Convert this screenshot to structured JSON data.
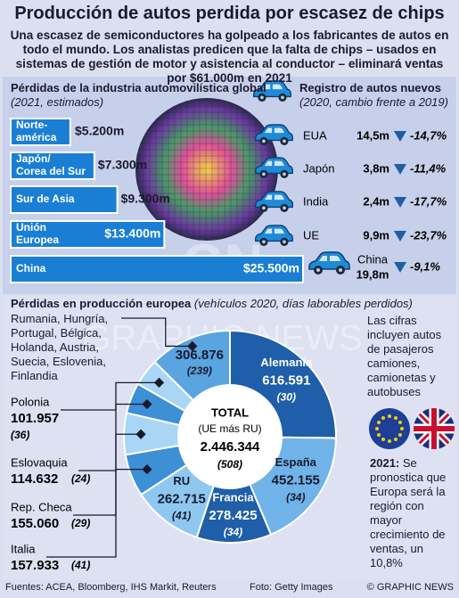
{
  "header": {
    "title": "Producción de autos perdida por escasez de chips",
    "subtitle": "Una escasez de semiconductores ha golpeado a los fabricantes de autos en todo el mundo. Los analistas predicen que la falta de chips – usados en sistemas de gestión de motor y asistencia al conductor – eliminará ventas por $61.000m en 2021"
  },
  "chart_data": [
    {
      "type": "bar",
      "orientation": "horizontal",
      "title": "Pérdidas de la industria automovilística global",
      "subtitle": "(2021, estimados)",
      "categories": [
        "Norte-\namérica",
        "Japón/\nCorea del Sur",
        "Sur de Asia",
        "Unión\nEuropea",
        "China"
      ],
      "values": [
        5200,
        7300,
        9300,
        13400,
        25500
      ],
      "value_labels": [
        "$5.200m",
        "$7.300m",
        "$9.300m",
        "$13.400m",
        "$25.500m"
      ],
      "color": "#1a7fd4"
    },
    {
      "type": "pie",
      "donut": true,
      "title": "Pérdidas en producción europea",
      "subtitle": "(vehículos 2020, días laborables perdidos)",
      "categories": [
        "Alemania",
        "España",
        "Francia",
        "RU",
        "Italia",
        "Rep. Checa",
        "Eslovaquia",
        "Polonia",
        "Rumania, Hungría, Portugal, Bélgica, Holanda, Austria, Suecia, Eslovenia, Finlandia"
      ],
      "values": [
        616591,
        452155,
        278425,
        262715,
        157933,
        155060,
        114632,
        101957,
        306876
      ],
      "value_labels": [
        "616.591",
        "452.155",
        "278.425",
        "262.715",
        "157.933",
        "155.060",
        "114.632",
        "101.957",
        "306.876"
      ],
      "days": [
        "(30)",
        "(34)",
        "(34)",
        "(41)",
        "(41)",
        "(29)",
        "(24)",
        "(36)",
        "(239)"
      ],
      "colors": [
        "#1f5ea8",
        "#6fb3e8",
        "#1f5ea8",
        "#8ec8f0",
        "#3d8fd6",
        "#a9d6f5",
        "#3d8fd6",
        "#a9d6f5",
        "#5aa4e0"
      ],
      "total": {
        "title": "TOTAL",
        "note": "(UE más RU)",
        "value": {
          "value": 2446344,
          "label": "2.446.344"
        },
        "days": "(508)"
      }
    }
  ],
  "registration": {
    "title": "Registro de autos nuevos",
    "subtitle": "(2020, cambio frente a 2019)",
    "rows": [
      {
        "country": "EUA",
        "value": "14,5m",
        "change": "-14,7%"
      },
      {
        "country": "Japón",
        "value": "3,8m",
        "change": "-11,4%"
      },
      {
        "country": "India",
        "value": "2,4m",
        "change": "-17,7%"
      },
      {
        "country": "UE",
        "value": "9,9m",
        "change": "-23,7%"
      },
      {
        "country": "China",
        "value": "19,8m",
        "change": "-9,1%"
      }
    ]
  },
  "notes": {
    "vehicles": "Las cifras incluyen autos de pasajeros camiones, camionetas y autobuses",
    "forecast_year": "2021:",
    "forecast": "Se pronostica que Europa será la región con mayor crecimiento de ventas, un 10,8%"
  },
  "footer": {
    "sources": "Fuentes: ACEA, Bloomberg, IHS Markit, Reuters",
    "photo": "Foto: Getty Images",
    "credit": "© GRAPHIC NEWS"
  },
  "watermark": {
    "logo": "GN",
    "text": "GRAPHIC NEWS"
  }
}
